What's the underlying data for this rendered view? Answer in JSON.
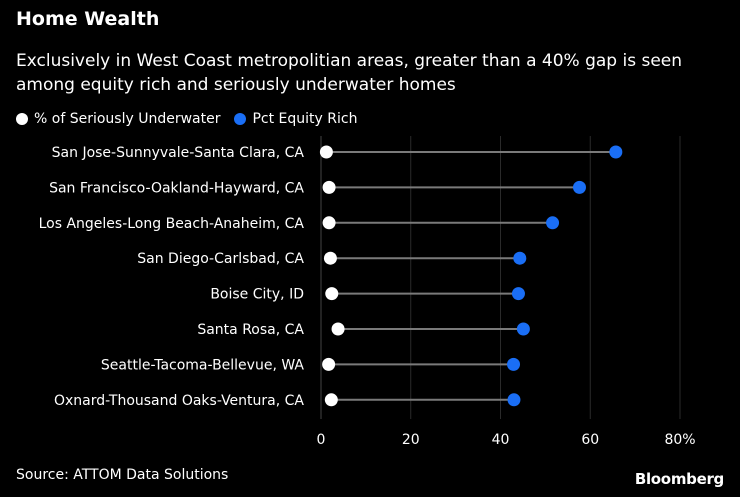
{
  "chart_data": {
    "type": "dot",
    "title": "Home Wealth",
    "subtitle": "Exclusively in West Coast metropolitian areas, greater than a 40% gap is seen among equity rich and seriously underwater homes",
    "categories": [
      "San Jose-Sunnyvale-Santa Clara, CA",
      "San Francisco-Oakland-Hayward, CA",
      "Los Angeles-Long Beach-Anaheim, CA",
      "San Diego-Carlsbad, CA",
      "Boise City, ID",
      "Santa Rosa, CA",
      "Seattle-Tacoma-Bellevue, WA",
      "Oxnard-Thousand Oaks-Ventura, CA"
    ],
    "series": [
      {
        "name": "% of Seriously Underwater",
        "color": "#ffffff",
        "values": [
          1.2,
          1.8,
          1.8,
          2.1,
          2.4,
          3.8,
          1.7,
          2.3
        ]
      },
      {
        "name": "Pct Equity Rich",
        "color": "#1a6ef5",
        "values": [
          65.7,
          57.6,
          51.6,
          44.3,
          44.0,
          45.1,
          42.9,
          43.0
        ]
      }
    ],
    "xlim": [
      0,
      80
    ],
    "xticks": [
      0,
      20,
      40,
      60,
      80
    ],
    "xtick_labels": [
      "0",
      "20",
      "40",
      "60",
      "80%"
    ],
    "xlabel": "",
    "ylabel": "",
    "legend_position": "top-left",
    "grid": "vertical"
  },
  "source": "Source: ATTOM Data Solutions",
  "brand": "Bloomberg"
}
